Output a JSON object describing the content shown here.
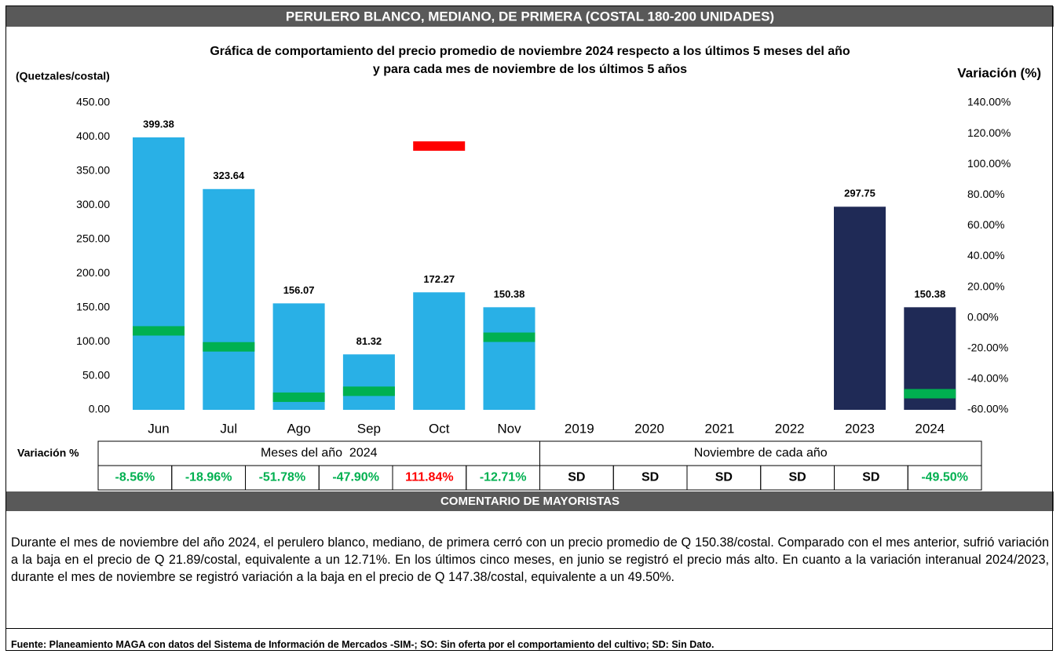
{
  "header": "PERULERO BLANCO, MEDIANO, DE PRIMERA (COSTAL 180-200 UNIDADES)",
  "chart_data": {
    "type": "bar",
    "title": [
      "Gráfica de comportamiento del precio promedio de noviembre 2024 respecto a los últimos 5 meses del año",
      "y para cada mes de noviembre de los últimos 5 años"
    ],
    "ylabel": "(Quetzales/costal)",
    "y2label": "Variación (%)",
    "ylim": [
      0,
      450
    ],
    "yticks": [
      {
        "value": 0,
        "label": "0.00"
      },
      {
        "value": 50,
        "label": "50.00"
      },
      {
        "value": 100,
        "label": "100.00"
      },
      {
        "value": 150,
        "label": "150.00"
      },
      {
        "value": 200,
        "label": "200.00"
      },
      {
        "value": 250,
        "label": "250.00"
      },
      {
        "value": 300,
        "label": "300.00"
      },
      {
        "value": 350,
        "label": "350.00"
      },
      {
        "value": 400,
        "label": "400.00"
      },
      {
        "value": 450,
        "label": "450.00"
      }
    ],
    "y2lim": [
      -60,
      140
    ],
    "y2ticks": [
      {
        "value": -60,
        "label": "-60.00%"
      },
      {
        "value": -40,
        "label": "-40.00%"
      },
      {
        "value": -20,
        "label": "-20.00%"
      },
      {
        "value": 0,
        "label": "0.00%"
      },
      {
        "value": 20,
        "label": "20.00%"
      },
      {
        "value": 40,
        "label": "40.00%"
      },
      {
        "value": 60,
        "label": "60.00%"
      },
      {
        "value": 80,
        "label": "80.00%"
      },
      {
        "value": 100,
        "label": "100.00%"
      },
      {
        "value": 120,
        "label": "120.00%"
      },
      {
        "value": 140,
        "label": "140.00%"
      }
    ],
    "table_label": "Variación %",
    "negative_color": "#00b050",
    "positive_color": "#ff0000",
    "groups": [
      {
        "label": "Meses del año  2024",
        "color": "#29b0e6",
        "categories": [
          "Jun",
          "Jul",
          "Ago",
          "Sep",
          "Oct",
          "Nov"
        ],
        "values": [
          399.38,
          323.64,
          156.07,
          81.32,
          172.27,
          150.38
        ],
        "variation": [
          -8.56,
          -18.96,
          -51.78,
          -47.9,
          111.84,
          -12.71
        ],
        "variation_labels": [
          "-8.56%",
          "-18.96%",
          "-51.78%",
          "-47.90%",
          "111.84%",
          "-12.71%"
        ]
      },
      {
        "label": "Noviembre de cada año",
        "color": "#1f2a56",
        "categories": [
          "2019",
          "2020",
          "2021",
          "2022",
          "2023",
          "2024"
        ],
        "values": [
          null,
          null,
          null,
          null,
          297.75,
          150.38
        ],
        "variation": [
          null,
          null,
          null,
          null,
          null,
          -49.5
        ],
        "variation_labels": [
          "SD",
          "SD",
          "SD",
          "SD",
          "SD",
          "-49.50%"
        ]
      }
    ]
  },
  "comment_header": "COMENTARIO DE MAYORISTAS",
  "comment": "Durante el mes de noviembre del año 2024, el perulero blanco, mediano, de primera cerró con un precio promedio de Q 150.38/costal. Comparado con el mes anterior, sufrió variación a la baja en el precio de Q 21.89/costal, equivalente a un 12.71%. En los últimos cinco meses, en junio se registró el precio más alto. En cuanto a la variación interanual 2024/2023, durante el mes de noviembre se registró variación a la baja en el precio de Q 147.38/costal, equivalente a un 49.50%.",
  "source": "Fuente: Planeamiento MAGA con datos del  Sistema de Información de Mercados -SIM-; SO: Sin oferta por el comportamiento del cultivo; SD: Sin Dato."
}
